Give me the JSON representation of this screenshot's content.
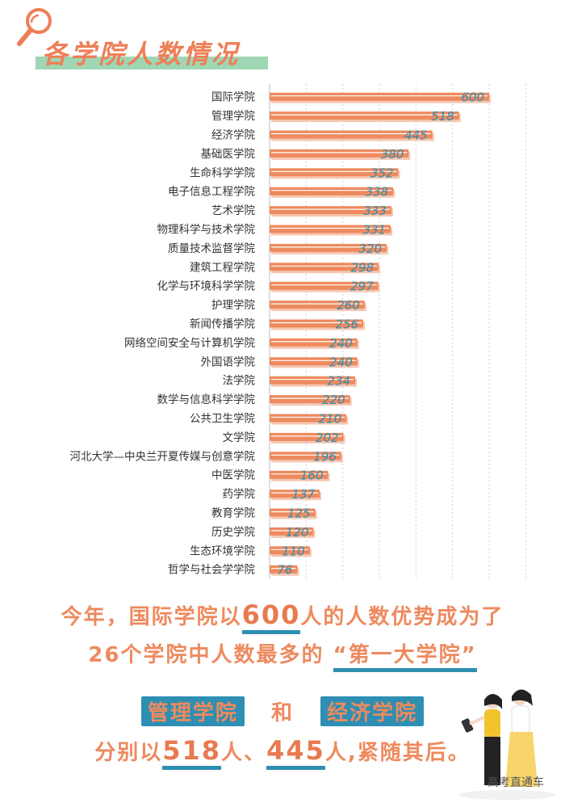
{
  "page_title": "各学院人数情况",
  "chart_data": {
    "type": "bar",
    "orientation": "horizontal",
    "title": "各学院人数情况",
    "xlim": [
      0,
      750
    ],
    "grid": true,
    "categories": [
      "国际学院",
      "管理学院",
      "经济学院",
      "基础医学院",
      "生命科学学院",
      "电子信息工程学院",
      "艺术学院",
      "物理科学与技术学院",
      "质量技术监督学院",
      "建筑工程学院",
      "化学与环境科学学院",
      "护理学院",
      "新闻传播学院",
      "网络空间安全与计算机学院",
      "外国语学院",
      "法学院",
      "数学与信息科学学院",
      "公共卫生学院",
      "文学院",
      "河北大学—中央兰开夏传媒与创意学院",
      "中医学院",
      "药学院",
      "教育学院",
      "历史学院",
      "生态环境学院",
      "哲学与社会学学院"
    ],
    "values": [
      600,
      518,
      445,
      380,
      352,
      338,
      333,
      331,
      320,
      298,
      297,
      260,
      256,
      240,
      240,
      234,
      220,
      210,
      202,
      196,
      160,
      137,
      125,
      120,
      110,
      76
    ],
    "colors": {
      "bar": "#ee8a5e",
      "bar_shadow": "#f6c7b2",
      "label": "#2e8fb2",
      "grid": "#cfcfcf",
      "category_text": "#333333"
    }
  },
  "summary": {
    "line1_a": "今年，国际学院以",
    "line1_num": "600",
    "line1_b": "人的人数优势成为了",
    "line2_a": "26个学院中人数最多的",
    "line2_quote": "“第一大学院”",
    "tag1": "管理学院",
    "and": "和",
    "tag2": "经济学院",
    "line4_a": "分别以",
    "line4_num1": "518",
    "line4_b": "人、",
    "line4_num2": "445",
    "line4_c": "人,紧随其后。"
  },
  "watermark": "高考直通车",
  "icons": {
    "search": "search-icon",
    "illustration": "two-women-illustration"
  }
}
